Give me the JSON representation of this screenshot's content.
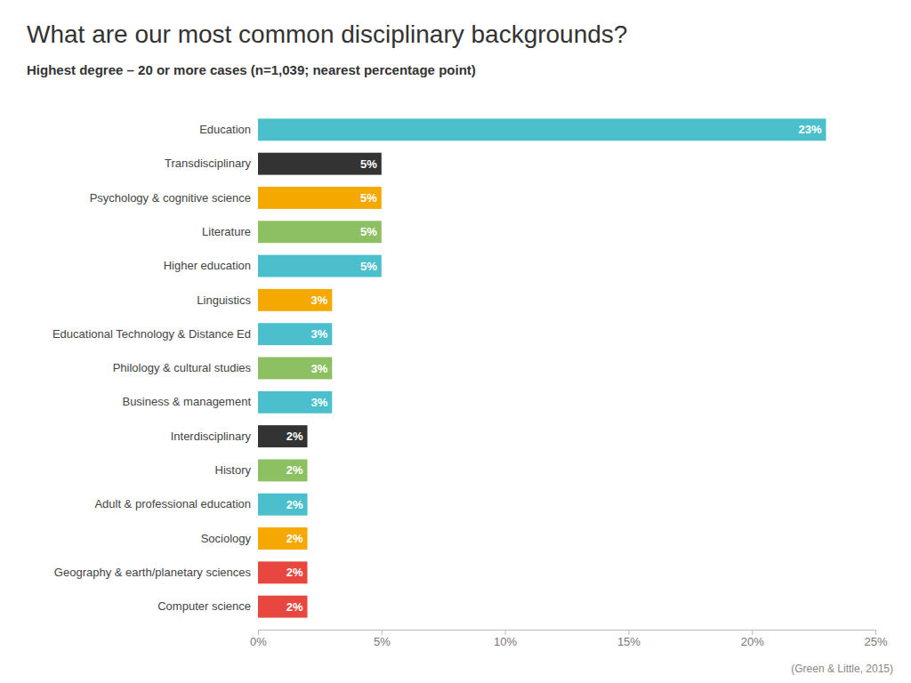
{
  "chart_data": {
    "type": "bar",
    "orientation": "horizontal",
    "title": "What are our most common disciplinary backgrounds?",
    "subtitle": "Highest degree – 20 or more cases (n=1,039; nearest percentage point)",
    "caption": "(Green & Little, 2015)",
    "categories": [
      "Education",
      "Transdisciplinary",
      "Psychology & cognitive science",
      "Literature",
      "Higher education",
      "Linguistics",
      "Educational Technology & Distance Ed",
      "Philology & cultural studies",
      "Business & management",
      "Interdisciplinary",
      "History",
      "Adult & professional education",
      "Sociology",
      "Geography & earth/planetary sciences",
      "Computer science"
    ],
    "values": [
      23,
      5,
      5,
      5,
      5,
      3,
      3,
      3,
      3,
      2,
      2,
      2,
      2,
      2,
      2
    ],
    "value_labels": [
      "23%",
      "5%",
      "5%",
      "5%",
      "5%",
      "3%",
      "3%",
      "3%",
      "3%",
      "2%",
      "2%",
      "2%",
      "2%",
      "2%",
      "2%"
    ],
    "data_labels": true,
    "colors": [
      "#4BBFCC",
      "#333333",
      "#F5A800",
      "#8DC063",
      "#4BBFCC",
      "#F5A800",
      "#4BBFCC",
      "#8DC063",
      "#4BBFCC",
      "#333333",
      "#8DC063",
      "#4BBFCC",
      "#F5A800",
      "#E8473F",
      "#E8473F"
    ],
    "xlim": [
      0,
      25
    ],
    "xticks": [
      {
        "value": 0,
        "label": "0%"
      },
      {
        "value": 5,
        "label": "5%"
      },
      {
        "value": 10,
        "label": "10%"
      },
      {
        "value": 15,
        "label": "15%"
      },
      {
        "value": 20,
        "label": "20%"
      },
      {
        "value": 25,
        "label": "25%"
      }
    ],
    "grid": false
  }
}
